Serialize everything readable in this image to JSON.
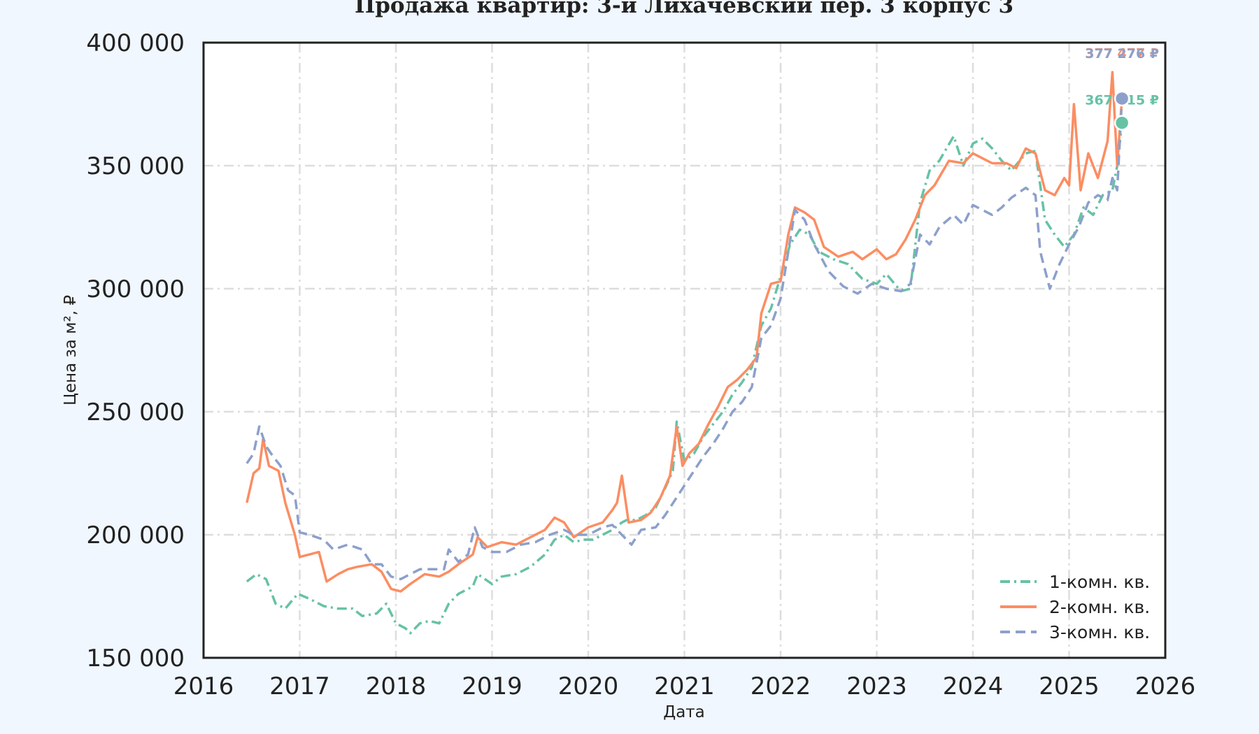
{
  "chart_data": {
    "type": "line",
    "title": "Продажа квартир: 3-й Лихачевский пер. 3 корпус 3",
    "xlabel": "Дата",
    "ylabel": "Цена за м², ₽",
    "xlim": [
      2016,
      2026
    ],
    "ylim": [
      150000,
      400000
    ],
    "x_ticks": [
      "2016",
      "2017",
      "2018",
      "2019",
      "2020",
      "2021",
      "2022",
      "2023",
      "2024",
      "2025",
      "2026"
    ],
    "y_ticks": [
      "150 000",
      "200 000",
      "250 000",
      "300 000",
      "350 000",
      "400 000"
    ],
    "grid": true,
    "legend_position": "bottom-right",
    "series": [
      {
        "name": "1-комн. кв.",
        "color": "#66c2a5",
        "dash": "dashdot",
        "end_label": "367 415 ₽",
        "end_value": 367415,
        "points": [
          [
            2016.45,
            181000
          ],
          [
            2016.55,
            184000
          ],
          [
            2016.65,
            182000
          ],
          [
            2016.75,
            172000
          ],
          [
            2016.85,
            170000
          ],
          [
            2016.98,
            176000
          ],
          [
            2017.1,
            174000
          ],
          [
            2017.25,
            171000
          ],
          [
            2017.4,
            170000
          ],
          [
            2017.55,
            170000
          ],
          [
            2017.65,
            167000
          ],
          [
            2017.8,
            168000
          ],
          [
            2017.9,
            172000
          ],
          [
            2018.0,
            164000
          ],
          [
            2018.1,
            162000
          ],
          [
            2018.15,
            160000
          ],
          [
            2018.25,
            164000
          ],
          [
            2018.35,
            165000
          ],
          [
            2018.45,
            164000
          ],
          [
            2018.55,
            172000
          ],
          [
            2018.65,
            176000
          ],
          [
            2018.8,
            179000
          ],
          [
            2018.85,
            184000
          ],
          [
            2019.0,
            180000
          ],
          [
            2019.1,
            183000
          ],
          [
            2019.25,
            184000
          ],
          [
            2019.4,
            187000
          ],
          [
            2019.55,
            192000
          ],
          [
            2019.65,
            198000
          ],
          [
            2019.75,
            200000
          ],
          [
            2019.85,
            197000
          ],
          [
            2019.95,
            198000
          ],
          [
            2020.05,
            198000
          ],
          [
            2020.15,
            200000
          ],
          [
            2020.25,
            202000
          ],
          [
            2020.35,
            205000
          ],
          [
            2020.4,
            206000
          ],
          [
            2020.5,
            206000
          ],
          [
            2020.6,
            208000
          ],
          [
            2020.7,
            211000
          ],
          [
            2020.8,
            219000
          ],
          [
            2020.88,
            226000
          ],
          [
            2020.92,
            246000
          ],
          [
            2021.0,
            230000
          ],
          [
            2021.1,
            233000
          ],
          [
            2021.2,
            240000
          ],
          [
            2021.3,
            245000
          ],
          [
            2021.4,
            250000
          ],
          [
            2021.5,
            257000
          ],
          [
            2021.6,
            262000
          ],
          [
            2021.7,
            268000
          ],
          [
            2021.8,
            285000
          ],
          [
            2021.9,
            292000
          ],
          [
            2022.0,
            305000
          ],
          [
            2022.1,
            318000
          ],
          [
            2022.2,
            324000
          ],
          [
            2022.3,
            322000
          ],
          [
            2022.4,
            315000
          ],
          [
            2022.55,
            312000
          ],
          [
            2022.7,
            310000
          ],
          [
            2022.85,
            304000
          ],
          [
            2023.0,
            302000
          ],
          [
            2023.1,
            306000
          ],
          [
            2023.25,
            299000
          ],
          [
            2023.35,
            300000
          ],
          [
            2023.45,
            335000
          ],
          [
            2023.55,
            348000
          ],
          [
            2023.65,
            352000
          ],
          [
            2023.8,
            362000
          ],
          [
            2023.9,
            350000
          ],
          [
            2024.0,
            359000
          ],
          [
            2024.1,
            361000
          ],
          [
            2024.2,
            357000
          ],
          [
            2024.3,
            352000
          ],
          [
            2024.4,
            348000
          ],
          [
            2024.55,
            355000
          ],
          [
            2024.65,
            356000
          ],
          [
            2024.75,
            328000
          ],
          [
            2024.85,
            322000
          ],
          [
            2024.95,
            317000
          ],
          [
            2025.05,
            322000
          ],
          [
            2025.15,
            333000
          ],
          [
            2025.25,
            330000
          ],
          [
            2025.35,
            338000
          ],
          [
            2025.45,
            340000
          ],
          [
            2025.5,
            350000
          ],
          [
            2025.55,
            367415
          ]
        ]
      },
      {
        "name": "2-комн. кв.",
        "color": "#fc8d62",
        "dash": "solid",
        "end_label": "377 477 ₽",
        "end_value": 377477,
        "points": [
          [
            2016.45,
            213000
          ],
          [
            2016.52,
            225000
          ],
          [
            2016.58,
            227000
          ],
          [
            2016.62,
            239000
          ],
          [
            2016.68,
            228000
          ],
          [
            2016.78,
            226000
          ],
          [
            2016.85,
            213000
          ],
          [
            2016.95,
            200000
          ],
          [
            2017.0,
            191000
          ],
          [
            2017.1,
            192000
          ],
          [
            2017.2,
            193000
          ],
          [
            2017.28,
            181000
          ],
          [
            2017.4,
            184000
          ],
          [
            2017.5,
            186000
          ],
          [
            2017.6,
            187000
          ],
          [
            2017.75,
            188000
          ],
          [
            2017.85,
            185000
          ],
          [
            2017.95,
            178000
          ],
          [
            2018.05,
            177000
          ],
          [
            2018.15,
            180000
          ],
          [
            2018.3,
            184000
          ],
          [
            2018.45,
            183000
          ],
          [
            2018.55,
            185000
          ],
          [
            2018.65,
            188000
          ],
          [
            2018.8,
            192000
          ],
          [
            2018.85,
            199000
          ],
          [
            2018.95,
            195000
          ],
          [
            2019.1,
            197000
          ],
          [
            2019.25,
            196000
          ],
          [
            2019.4,
            199000
          ],
          [
            2019.55,
            202000
          ],
          [
            2019.65,
            207000
          ],
          [
            2019.75,
            205000
          ],
          [
            2019.85,
            199000
          ],
          [
            2020.0,
            203000
          ],
          [
            2020.15,
            205000
          ],
          [
            2020.25,
            210000
          ],
          [
            2020.3,
            213000
          ],
          [
            2020.35,
            224000
          ],
          [
            2020.42,
            205000
          ],
          [
            2020.55,
            206000
          ],
          [
            2020.65,
            209000
          ],
          [
            2020.75,
            215000
          ],
          [
            2020.85,
            224000
          ],
          [
            2020.92,
            244000
          ],
          [
            2020.98,
            228000
          ],
          [
            2021.05,
            233000
          ],
          [
            2021.15,
            237000
          ],
          [
            2021.25,
            245000
          ],
          [
            2021.35,
            252000
          ],
          [
            2021.45,
            260000
          ],
          [
            2021.55,
            263000
          ],
          [
            2021.65,
            267000
          ],
          [
            2021.75,
            272000
          ],
          [
            2021.8,
            290000
          ],
          [
            2021.9,
            302000
          ],
          [
            2022.0,
            303000
          ],
          [
            2022.08,
            322000
          ],
          [
            2022.15,
            333000
          ],
          [
            2022.25,
            331000
          ],
          [
            2022.35,
            328000
          ],
          [
            2022.45,
            317000
          ],
          [
            2022.6,
            313000
          ],
          [
            2022.75,
            315000
          ],
          [
            2022.85,
            312000
          ],
          [
            2023.0,
            316000
          ],
          [
            2023.1,
            312000
          ],
          [
            2023.2,
            314000
          ],
          [
            2023.3,
            320000
          ],
          [
            2023.4,
            328000
          ],
          [
            2023.5,
            338000
          ],
          [
            2023.6,
            342000
          ],
          [
            2023.75,
            352000
          ],
          [
            2023.9,
            351000
          ],
          [
            2024.0,
            355000
          ],
          [
            2024.1,
            353000
          ],
          [
            2024.2,
            351000
          ],
          [
            2024.35,
            351000
          ],
          [
            2024.45,
            349000
          ],
          [
            2024.55,
            357000
          ],
          [
            2024.65,
            355000
          ],
          [
            2024.75,
            340000
          ],
          [
            2024.85,
            338000
          ],
          [
            2024.95,
            345000
          ],
          [
            2025.0,
            342000
          ],
          [
            2025.05,
            375000
          ],
          [
            2025.12,
            340000
          ],
          [
            2025.2,
            355000
          ],
          [
            2025.3,
            345000
          ],
          [
            2025.4,
            360000
          ],
          [
            2025.45,
            388000
          ],
          [
            2025.5,
            350000
          ],
          [
            2025.55,
            377477
          ]
        ]
      },
      {
        "name": "3-комн. кв.",
        "color": "#8da0cb",
        "dash": "dashed",
        "end_label": "377 276 ₽",
        "end_value": 377276,
        "points": [
          [
            2016.45,
            229000
          ],
          [
            2016.52,
            233000
          ],
          [
            2016.58,
            244000
          ],
          [
            2016.65,
            236000
          ],
          [
            2016.72,
            232000
          ],
          [
            2016.8,
            228000
          ],
          [
            2016.88,
            218000
          ],
          [
            2016.95,
            216000
          ],
          [
            2017.0,
            201000
          ],
          [
            2017.1,
            200000
          ],
          [
            2017.25,
            198000
          ],
          [
            2017.35,
            194000
          ],
          [
            2017.5,
            196000
          ],
          [
            2017.65,
            194000
          ],
          [
            2017.75,
            188000
          ],
          [
            2017.85,
            188000
          ],
          [
            2017.95,
            183000
          ],
          [
            2018.05,
            182000
          ],
          [
            2018.15,
            184000
          ],
          [
            2018.25,
            186000
          ],
          [
            2018.4,
            186000
          ],
          [
            2018.5,
            186000
          ],
          [
            2018.55,
            194000
          ],
          [
            2018.65,
            189000
          ],
          [
            2018.75,
            192000
          ],
          [
            2018.82,
            203000
          ],
          [
            2018.9,
            195000
          ],
          [
            2019.0,
            193000
          ],
          [
            2019.15,
            193000
          ],
          [
            2019.3,
            196000
          ],
          [
            2019.45,
            197000
          ],
          [
            2019.6,
            200000
          ],
          [
            2019.75,
            202000
          ],
          [
            2019.85,
            200000
          ],
          [
            2020.0,
            200000
          ],
          [
            2020.15,
            203000
          ],
          [
            2020.25,
            204000
          ],
          [
            2020.35,
            200000
          ],
          [
            2020.45,
            196000
          ],
          [
            2020.55,
            202000
          ],
          [
            2020.7,
            203000
          ],
          [
            2020.8,
            208000
          ],
          [
            2020.9,
            214000
          ],
          [
            2021.0,
            220000
          ],
          [
            2021.1,
            226000
          ],
          [
            2021.2,
            232000
          ],
          [
            2021.3,
            237000
          ],
          [
            2021.4,
            243000
          ],
          [
            2021.5,
            250000
          ],
          [
            2021.6,
            254000
          ],
          [
            2021.7,
            260000
          ],
          [
            2021.8,
            280000
          ],
          [
            2021.9,
            285000
          ],
          [
            2022.0,
            296000
          ],
          [
            2022.08,
            315000
          ],
          [
            2022.15,
            332000
          ],
          [
            2022.25,
            328000
          ],
          [
            2022.35,
            318000
          ],
          [
            2022.5,
            307000
          ],
          [
            2022.65,
            301000
          ],
          [
            2022.8,
            298000
          ],
          [
            2022.95,
            302000
          ],
          [
            2023.1,
            300000
          ],
          [
            2023.25,
            299000
          ],
          [
            2023.35,
            302000
          ],
          [
            2023.45,
            322000
          ],
          [
            2023.55,
            318000
          ],
          [
            2023.65,
            325000
          ],
          [
            2023.8,
            330000
          ],
          [
            2023.9,
            326000
          ],
          [
            2024.0,
            334000
          ],
          [
            2024.1,
            332000
          ],
          [
            2024.2,
            330000
          ],
          [
            2024.3,
            333000
          ],
          [
            2024.4,
            337000
          ],
          [
            2024.55,
            341000
          ],
          [
            2024.65,
            338000
          ],
          [
            2024.7,
            315000
          ],
          [
            2024.8,
            300000
          ],
          [
            2024.9,
            310000
          ],
          [
            2025.0,
            318000
          ],
          [
            2025.1,
            325000
          ],
          [
            2025.2,
            335000
          ],
          [
            2025.3,
            338000
          ],
          [
            2025.4,
            336000
          ],
          [
            2025.45,
            345000
          ],
          [
            2025.5,
            340000
          ],
          [
            2025.55,
            377276
          ]
        ]
      }
    ]
  }
}
